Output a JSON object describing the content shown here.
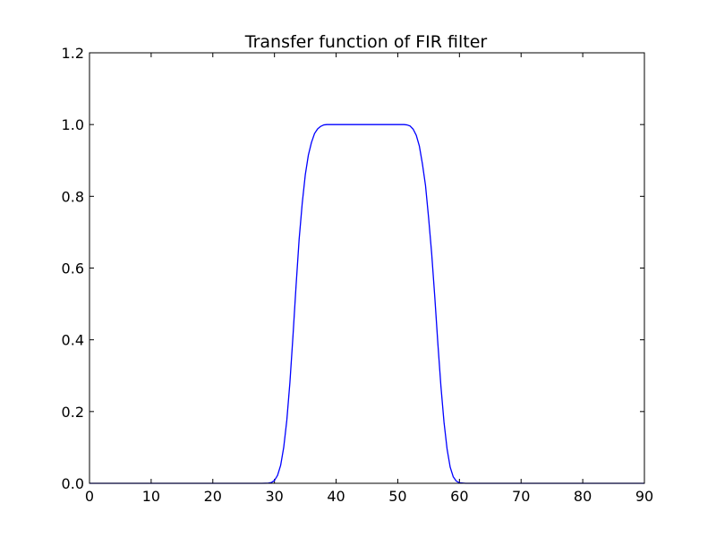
{
  "chart_data": {
    "type": "line",
    "title": "Transfer function of FIR filter",
    "xlabel": "",
    "ylabel": "",
    "xlim": [
      0,
      90
    ],
    "ylim": [
      0.0,
      1.2
    ],
    "x_ticks": [
      0,
      10,
      20,
      30,
      40,
      50,
      60,
      70,
      80,
      90
    ],
    "x_tick_labels": [
      "0",
      "10",
      "20",
      "30",
      "40",
      "50",
      "60",
      "70",
      "80",
      "90"
    ],
    "y_ticks": [
      0.0,
      0.2,
      0.4,
      0.6,
      0.8,
      1.0,
      1.2
    ],
    "y_tick_labels": [
      "0.0",
      "0.2",
      "0.4",
      "0.6",
      "0.8",
      "1.0",
      "1.2"
    ],
    "grid": false,
    "legend": "none",
    "series": [
      {
        "color": "#0000ff",
        "x": [
          0,
          5,
          10,
          15,
          20,
          25,
          28,
          29,
          29.5,
          30,
          30.5,
          31,
          31.5,
          32,
          32.5,
          33,
          33.5,
          34,
          34.5,
          35,
          35.5,
          36,
          36.5,
          37,
          37.5,
          38,
          38.5,
          39,
          40,
          42,
          44,
          46,
          48,
          50,
          51,
          51.5,
          52,
          52.5,
          53,
          53.5,
          54,
          54.5,
          55,
          55.5,
          56,
          56.5,
          57,
          57.5,
          58,
          58.5,
          59,
          59.5,
          60,
          61,
          62,
          65,
          70,
          75,
          80,
          85,
          90
        ],
        "y": [
          0,
          0,
          0,
          0,
          0,
          0,
          0,
          0.0005,
          0.002,
          0.008,
          0.022,
          0.05,
          0.1,
          0.175,
          0.28,
          0.41,
          0.55,
          0.68,
          0.78,
          0.86,
          0.915,
          0.95,
          0.975,
          0.988,
          0.995,
          0.999,
          1.0,
          1.0,
          1.0,
          1.0,
          1.0,
          1.0,
          1.0,
          1.0,
          1.0,
          0.999,
          0.996,
          0.987,
          0.97,
          0.94,
          0.89,
          0.83,
          0.74,
          0.64,
          0.52,
          0.39,
          0.27,
          0.17,
          0.095,
          0.045,
          0.018,
          0.006,
          0.0015,
          0,
          0,
          0,
          0,
          0,
          0,
          0,
          0
        ]
      }
    ]
  }
}
